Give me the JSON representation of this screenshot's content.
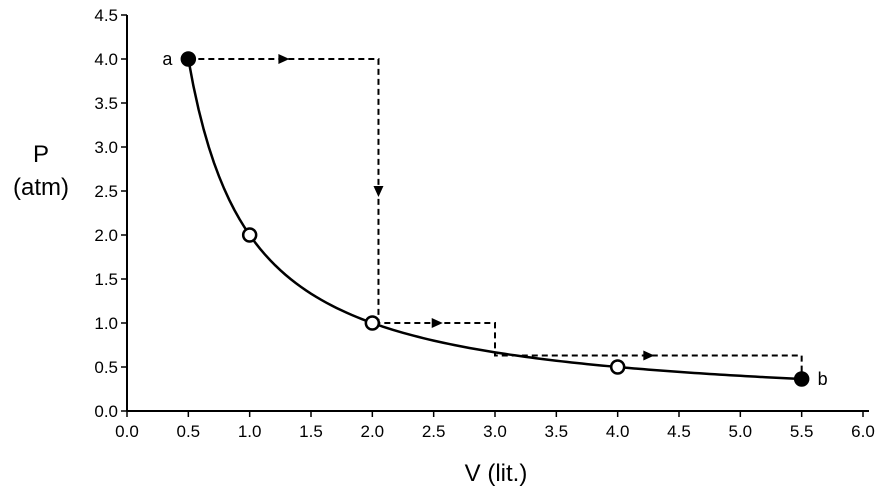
{
  "chart_data": {
    "type": "line",
    "xlabel": "V (lit.)",
    "ylabel": [
      "P",
      "(atm)"
    ],
    "xlim": [
      0.0,
      6.0
    ],
    "ylim": [
      0.0,
      4.5
    ],
    "x_ticks": [
      "0.0",
      "0.5",
      "1.0",
      "1.5",
      "2.0",
      "2.5",
      "3.0",
      "3.5",
      "4.0",
      "4.5",
      "5.0",
      "5.5",
      "6.0"
    ],
    "y_ticks": [
      "0.0",
      "0.5",
      "1.0",
      "1.5",
      "2.0",
      "2.5",
      "3.0",
      "3.5",
      "4.0",
      "4.5"
    ],
    "grid": false,
    "series": [
      {
        "style": "solid",
        "color": "#000000",
        "curve": "P = 2 / V",
        "x_range": [
          0.5,
          5.5
        ]
      },
      {
        "style": "dashed",
        "color": "#000000",
        "arrows": true,
        "points": [
          {
            "x": 0.5,
            "y": 4.0
          },
          {
            "x": 2.05,
            "y": 4.0
          },
          {
            "x": 2.05,
            "y": 1.0
          },
          {
            "x": 3.0,
            "y": 1.0
          },
          {
            "x": 3.0,
            "y": 0.63
          },
          {
            "x": 5.5,
            "y": 0.63
          },
          {
            "x": 5.5,
            "y": 0.36
          }
        ]
      }
    ],
    "markers": [
      {
        "x": 0.5,
        "y": 4.0,
        "filled": true,
        "label": "a"
      },
      {
        "x": 1.0,
        "y": 2.0,
        "filled": false,
        "label": ""
      },
      {
        "x": 2.0,
        "y": 1.0,
        "filled": false,
        "label": ""
      },
      {
        "x": 4.0,
        "y": 0.5,
        "filled": false,
        "label": ""
      },
      {
        "x": 5.5,
        "y": 0.364,
        "filled": true,
        "label": "b"
      }
    ]
  }
}
